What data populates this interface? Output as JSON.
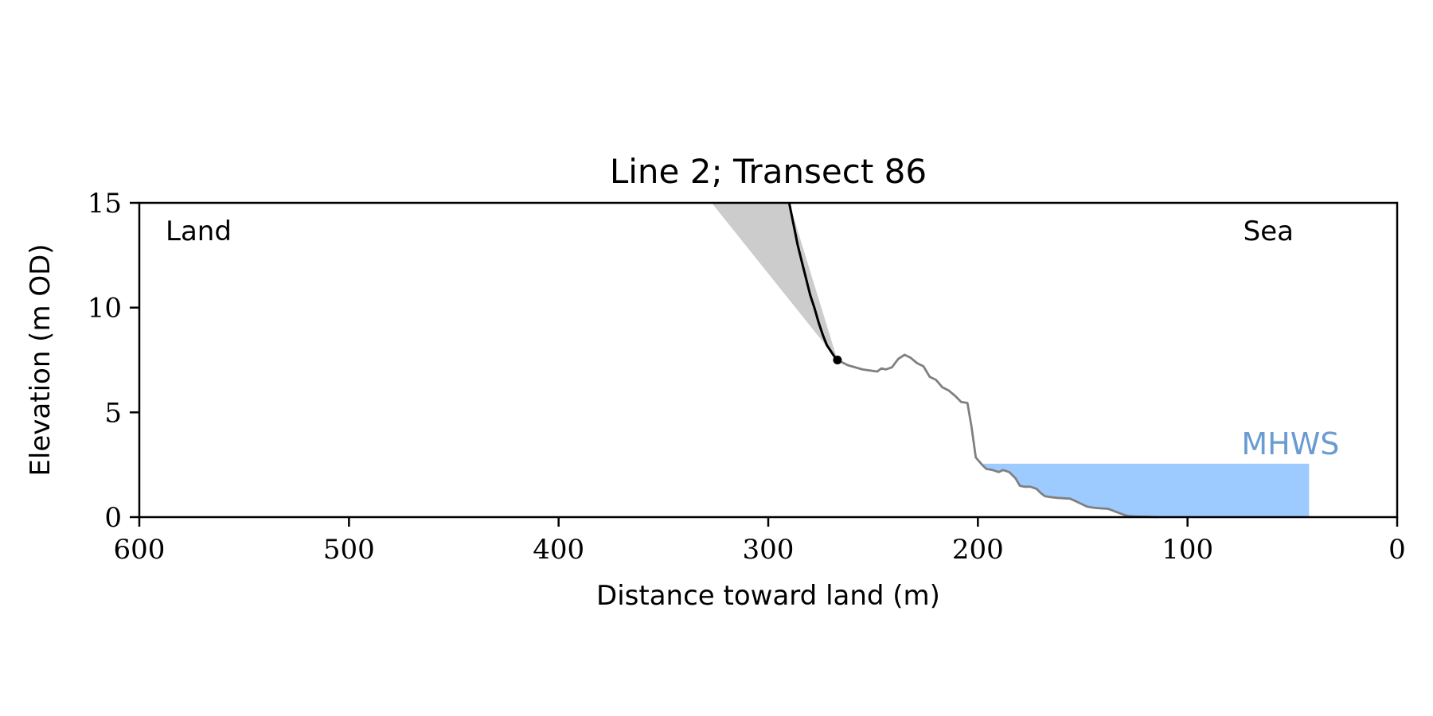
{
  "chart_data": {
    "type": "line",
    "title": "Line 2; Transect 86",
    "xlabel": "Distance toward land (m)",
    "ylabel": "Elevation (m OD)",
    "xlim": [
      600,
      0
    ],
    "ylim": [
      0,
      15
    ],
    "x_ticks": [
      600,
      500,
      400,
      300,
      200,
      100,
      0
    ],
    "y_ticks": [
      0,
      5,
      10,
      15
    ],
    "grid": false,
    "annotations": {
      "land": "Land",
      "sea": "Sea",
      "mhws": "MHWS"
    },
    "colors": {
      "profile": "#808080",
      "cliff": "#000000",
      "wedge": "#cccccc",
      "water": "#9ecbff",
      "mhws_text": "#6a9bd1"
    },
    "profile": {
      "x": [
        267,
        262,
        255,
        248,
        246,
        244,
        241,
        238,
        235,
        232,
        229,
        226,
        223,
        220,
        217,
        214,
        211,
        208,
        205,
        203,
        201,
        198,
        196,
        193,
        190,
        188,
        185,
        182,
        180,
        178,
        175,
        172,
        170,
        168,
        165,
        162,
        159,
        156,
        152,
        148,
        145,
        142,
        138,
        134,
        130,
        128,
        125,
        120,
        114
      ],
      "y": [
        7.5,
        7.25,
        7.05,
        6.95,
        7.1,
        7.05,
        7.15,
        7.55,
        7.75,
        7.6,
        7.35,
        7.2,
        6.7,
        6.55,
        6.2,
        6.05,
        5.8,
        5.5,
        5.45,
        4.3,
        2.85,
        2.5,
        2.3,
        2.25,
        2.15,
        2.25,
        2.15,
        1.85,
        1.5,
        1.45,
        1.45,
        1.35,
        1.15,
        1.0,
        0.95,
        0.92,
        0.9,
        0.88,
        0.7,
        0.5,
        0.45,
        0.42,
        0.4,
        0.25,
        0.1,
        0.05,
        0.03,
        0.02,
        0.0
      ]
    },
    "cliff": {
      "x": [
        290,
        288,
        286,
        284,
        282,
        280,
        278,
        276,
        274,
        272,
        270,
        268,
        267
      ],
      "y": [
        15.0,
        14.0,
        13.0,
        12.2,
        11.4,
        10.6,
        10.0,
        9.3,
        8.7,
        8.2,
        7.9,
        7.6,
        7.5
      ]
    },
    "failure_wedge": {
      "x": [
        327,
        290,
        267
      ],
      "y": [
        15.0,
        15.0,
        7.5
      ]
    },
    "cliff_toe": {
      "x": 267,
      "y": 7.5
    },
    "mhws_level": 2.55,
    "sea_extent_x": 42
  }
}
